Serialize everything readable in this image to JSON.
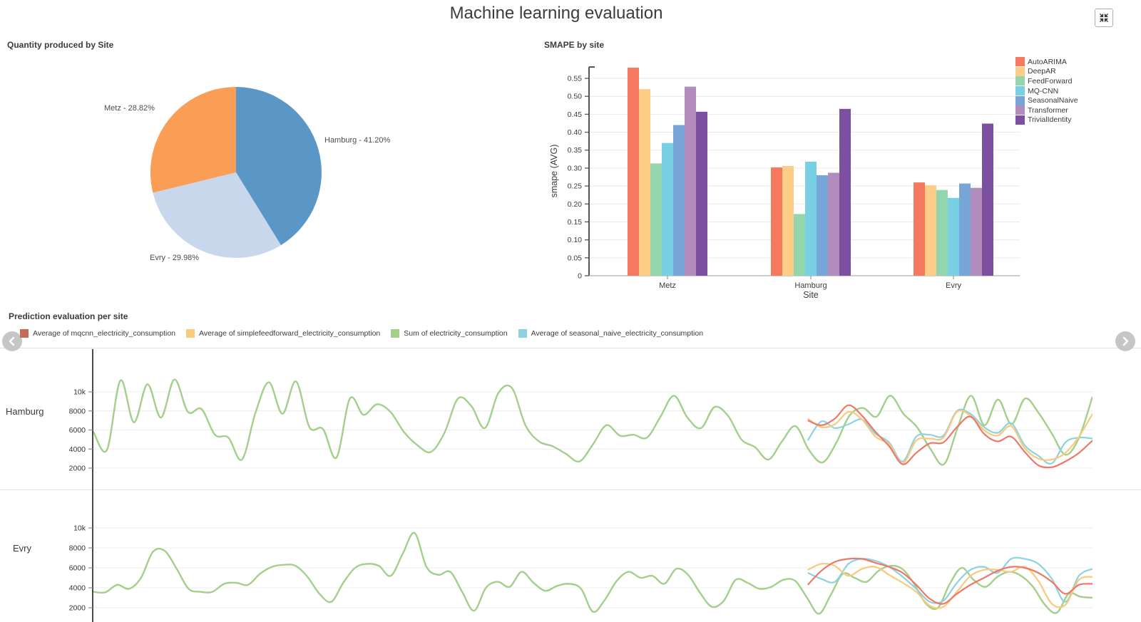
{
  "header": {
    "title": "Machine learning evaluation",
    "fullscreen_icon": "compress-icon"
  },
  "nav": {
    "left_icon": "chevron-left-icon",
    "right_icon": "chevron-right-icon"
  },
  "chart_data": [
    {
      "id": "quantity-pie",
      "type": "pie",
      "title": "Quantity produced by Site",
      "legend_position": "labels-outside",
      "slices": [
        {
          "label": "Hamburg",
          "pct": 41.2,
          "display": "Hamburg - 41.20%",
          "color": "#5b97c6"
        },
        {
          "label": "Evry",
          "pct": 29.98,
          "display": "Evry - 29.98%",
          "color": "#c9d7ed"
        },
        {
          "label": "Metz",
          "pct": 28.82,
          "display": "Metz - 28.82%",
          "color": "#fb9e55"
        }
      ]
    },
    {
      "id": "smape-bar",
      "type": "bar",
      "title": "SMAPE by site",
      "xlabel": "Site",
      "ylabel": "smape (AVG)",
      "categories": [
        "Metz",
        "Hamburg",
        "Evry"
      ],
      "yticks": [
        0,
        0.05,
        0.1,
        0.15,
        0.2,
        0.25,
        0.3,
        0.35,
        0.4,
        0.45,
        0.5,
        0.55
      ],
      "ylim": [
        0,
        0.6
      ],
      "grid": true,
      "legend_position": "right",
      "series": [
        {
          "name": "AutoARIMA",
          "color": "#f4795f",
          "values": [
            0.58,
            0.302,
            0.26
          ]
        },
        {
          "name": "DeepAR",
          "color": "#fccd86",
          "values": [
            0.52,
            0.306,
            0.252
          ]
        },
        {
          "name": "FeedForward",
          "color": "#93d6ae",
          "values": [
            0.313,
            0.172,
            0.239
          ]
        },
        {
          "name": "MQ-CNN",
          "color": "#79d0e3",
          "values": [
            0.37,
            0.318,
            0.217
          ]
        },
        {
          "name": "SeasonalNaive",
          "color": "#78a5d8",
          "values": [
            0.42,
            0.28,
            0.257
          ]
        },
        {
          "name": "Transformer",
          "color": "#b28cbd",
          "values": [
            0.527,
            0.287,
            0.245
          ]
        },
        {
          "name": "TrivialIdentity",
          "color": "#7b50a0",
          "values": [
            0.457,
            0.465,
            0.424
          ]
        }
      ]
    },
    {
      "id": "prediction-lines",
      "type": "line",
      "title": "Prediction evaluation per site",
      "yticks": [
        "2000",
        "4000",
        "6000",
        "8000",
        "10k"
      ],
      "ytick_values": [
        2000,
        4000,
        6000,
        8000,
        10000
      ],
      "grid": true,
      "forecast_start_frac": 0.715,
      "legend": [
        {
          "label": "Average of mqcnn_electricity_consumption",
          "color": "#c66a59",
          "line_color": "#ee7868"
        },
        {
          "label": "Average of simplefeedforward_electricity_consumption",
          "color": "#f9c97c",
          "line_color": "#f9c97c"
        },
        {
          "label": "Sum of electricity_consumption",
          "color": "#a3cf8b",
          "line_color": "#a3cf8b"
        },
        {
          "label": "Average of seasonal_naive_electricity_consumption",
          "color": "#8ed2e2",
          "line_color": "#8ed2e2"
        }
      ],
      "rows": [
        {
          "site": "Hamburg",
          "actual": [
            5800,
            3900,
            11200,
            6800,
            10800,
            7300,
            11300,
            7900,
            8200,
            5500,
            5200,
            2900,
            7800,
            11000,
            7700,
            11100,
            6300,
            6100,
            3100,
            9300,
            7600,
            8700,
            7900,
            5800,
            4400,
            3700,
            5700,
            9300,
            8500,
            6200,
            9900,
            10400,
            6500,
            4800,
            4300,
            3500,
            2700,
            4500,
            6500,
            5400,
            5500,
            5200,
            7400,
            9600,
            7300,
            6200,
            8400,
            7500,
            5000,
            4200,
            2900,
            4800,
            6400,
            3900,
            2600,
            4600,
            7500,
            8300,
            7400,
            9600,
            7700,
            6300,
            4000,
            2400,
            6200,
            9600,
            6500,
            9200,
            6600,
            9300,
            7800,
            5600,
            3400,
            5200,
            9500
          ],
          "forecasts": {
            "mqcnn": [
              7000,
              6500,
              7200,
              8600,
              7500,
              5800,
              4300,
              2400,
              3600,
              4600,
              4700,
              6300,
              7400,
              5600,
              4800,
              5300,
              3700,
              2300,
              2100,
              2700,
              3600,
              4900
            ],
            "simplefeedforward": [
              7200,
              6300,
              6600,
              7900,
              7100,
              5300,
              4500,
              2500,
              4900,
              5100,
              5200,
              7900,
              7500,
              6000,
              5400,
              6400,
              4100,
              3000,
              2900,
              3600,
              5300,
              7700
            ],
            "seasonal_naive": [
              4900,
              6900,
              6200,
              6600,
              7100,
              5600,
              4700,
              2700,
              5300,
              5500,
              5400,
              8000,
              7700,
              6300,
              5700,
              6700,
              4400,
              3300,
              2500,
              4700,
              5200,
              5100
            ]
          }
        },
        {
          "site": "Evry",
          "actual": [
            3600,
            3550,
            4300,
            3900,
            5000,
            7600,
            7700,
            5900,
            3900,
            3600,
            3600,
            4400,
            4500,
            4300,
            5400,
            6100,
            6300,
            6200,
            5100,
            3400,
            2600,
            4500,
            6000,
            6400,
            6200,
            5200,
            7400,
            9500,
            6100,
            5300,
            5600,
            3600,
            1700,
            4000,
            4600,
            4100,
            5600,
            4500,
            3700,
            4200,
            4400,
            3900,
            1600,
            2800,
            4700,
            5600,
            5000,
            5200,
            4400,
            5900,
            5300,
            3500,
            2100,
            2700,
            4800,
            4500,
            3900,
            4100,
            4800,
            4700,
            3000,
            1400,
            3300,
            5400,
            5000,
            4600,
            5700,
            6200,
            5900,
            4400,
            2400,
            2000,
            4400,
            6000,
            4800,
            4100,
            5100,
            5600,
            5200,
            4100,
            2300,
            1500,
            3400,
            3100,
            3000
          ],
          "forecasts": {
            "mqcnn": [
              4300,
              5700,
              6600,
              6900,
              6900,
              6500,
              6100,
              5500,
              4300,
              2900,
              2400,
              3400,
              4300,
              5000,
              5700,
              6100,
              6000,
              5500,
              4600,
              3400,
              4300,
              4400
            ],
            "simplefeedforward": [
              5800,
              6400,
              6200,
              5200,
              5900,
              6100,
              5300,
              4500,
              3600,
              2200,
              2100,
              3600,
              5200,
              5800,
              5800,
              5600,
              6100,
              4700,
              2400,
              2300,
              4800,
              5100
            ],
            "seasonal_naive": [
              5500,
              4900,
              4600,
              6400,
              6900,
              6700,
              6100,
              5100,
              3900,
              2600,
              2700,
              4500,
              5800,
              6100,
              5500,
              6900,
              6900,
              6400,
              4900,
              2600,
              5200,
              5900
            ]
          }
        }
      ]
    }
  ]
}
